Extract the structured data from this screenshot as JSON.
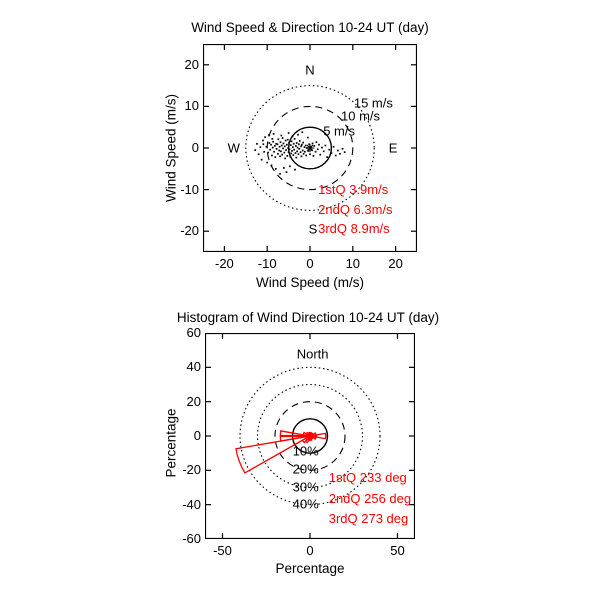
{
  "colors": {
    "axis": "#000000",
    "annotation_red": "#ff0000",
    "scatter": "#000000",
    "background": "#ffffff"
  },
  "chart_data": [
    {
      "id": "wind-scatter",
      "type": "scatter",
      "title": "Wind Speed & Direction 10-24 UT (day)",
      "xlabel": "Wind Speed (m/s)",
      "ylabel": "Wind Speed (m/s)",
      "xlim": [
        -25,
        25
      ],
      "ylim": [
        -25,
        25
      ],
      "xticks": [
        -20,
        -10,
        0,
        10,
        20
      ],
      "yticks": [
        -20,
        -10,
        0,
        10,
        20
      ],
      "grid_circles": [
        {
          "r": 5,
          "style": "solid",
          "label": "5 m/s",
          "label_pos": [
            6.8,
            4.2
          ]
        },
        {
          "r": 10,
          "style": "dashed",
          "label": "10 m/s",
          "label_pos": [
            11.8,
            7.8
          ]
        },
        {
          "r": 15,
          "style": "dotted",
          "label": "15 m/s",
          "label_pos": [
            14.8,
            10.9
          ]
        }
      ],
      "compass_labels": [
        {
          "text": "N",
          "pos": [
            0,
            18.7
          ]
        },
        {
          "text": "E",
          "pos": [
            19.4,
            0
          ]
        },
        {
          "text": "S",
          "pos": [
            0.7,
            -19.4
          ]
        },
        {
          "text": "W",
          "pos": [
            -17.8,
            0
          ]
        }
      ],
      "annotations": [
        {
          "text": "1stQ 3.9m/s",
          "pos": [
            1.9,
            -10.1
          ]
        },
        {
          "text": "2ndQ 6.3m/s",
          "pos": [
            1.9,
            -14.8
          ]
        },
        {
          "text": "3rdQ 8.9m/s",
          "pos": [
            1.9,
            -19.4
          ]
        }
      ],
      "center_marker": {
        "shape": "asterisk",
        "pos": [
          0,
          0
        ]
      },
      "points": [
        [
          -10.2,
          0.3
        ],
        [
          -9.8,
          -1.1
        ],
        [
          -9.5,
          1.2
        ],
        [
          -9.3,
          -0.4
        ],
        [
          -9.1,
          0.8
        ],
        [
          -8.9,
          -1.8
        ],
        [
          -8.7,
          0.1
        ],
        [
          -8.6,
          1.5
        ],
        [
          -8.4,
          -0.9
        ],
        [
          -8.2,
          0.5
        ],
        [
          -8.1,
          -2.2
        ],
        [
          -7.9,
          1.0
        ],
        [
          -7.8,
          -0.2
        ],
        [
          -7.6,
          0.9
        ],
        [
          -7.5,
          -1.4
        ],
        [
          -7.4,
          2.1
        ],
        [
          -7.2,
          -0.6
        ],
        [
          -7.1,
          0.3
        ],
        [
          -7.0,
          -2.0
        ],
        [
          -6.9,
          1.4
        ],
        [
          -6.8,
          -0.8
        ],
        [
          -6.6,
          0.6
        ],
        [
          -6.5,
          -1.6
        ],
        [
          -6.4,
          2.4
        ],
        [
          -6.3,
          -0.1
        ],
        [
          -6.2,
          1.1
        ],
        [
          -6.0,
          -1.1
        ],
        [
          -5.9,
          0.4
        ],
        [
          -5.8,
          -2.5
        ],
        [
          -5.7,
          1.8
        ],
        [
          -5.6,
          -0.5
        ],
        [
          -5.4,
          0.8
        ],
        [
          -5.3,
          -1.9
        ],
        [
          -5.2,
          2.0
        ],
        [
          -5.1,
          0.0
        ],
        [
          -5.0,
          -1.0
        ],
        [
          -4.9,
          1.3
        ],
        [
          -4.8,
          -0.3
        ],
        [
          -4.6,
          -2.1
        ],
        [
          -4.5,
          0.7
        ],
        [
          -4.4,
          -1.3
        ],
        [
          -4.3,
          1.6
        ],
        [
          -4.2,
          -0.7
        ],
        [
          -4.0,
          0.2
        ],
        [
          -3.9,
          -1.7
        ],
        [
          -3.8,
          1.0
        ],
        [
          -3.7,
          -0.4
        ],
        [
          -3.6,
          2.2
        ],
        [
          -3.4,
          -1.2
        ],
        [
          -3.3,
          0.5
        ],
        [
          -3.2,
          -2.3
        ],
        [
          -3.1,
          1.2
        ],
        [
          -3.0,
          -0.8
        ],
        [
          -2.9,
          0.1
        ],
        [
          -2.7,
          -1.5
        ],
        [
          -2.6,
          0.9
        ],
        [
          -2.5,
          -0.2
        ],
        [
          -2.4,
          1.7
        ],
        [
          -2.2,
          -1.0
        ],
        [
          -2.1,
          0.4
        ],
        [
          -2.0,
          -2.0
        ],
        [
          -1.9,
          0.8
        ],
        [
          -1.7,
          -0.6
        ],
        [
          -1.6,
          1.3
        ],
        [
          -1.5,
          -1.4
        ],
        [
          -1.3,
          0.2
        ],
        [
          -1.2,
          -0.9
        ],
        [
          -1.0,
          0.6
        ],
        [
          -0.9,
          -1.8
        ],
        [
          -0.7,
          0.0
        ],
        [
          -12.8,
          -0.5
        ],
        [
          -12.4,
          1.0
        ],
        [
          -12.0,
          -1.5
        ],
        [
          -11.6,
          0.2
        ],
        [
          -11.3,
          -2.8
        ],
        [
          -11.0,
          1.8
        ],
        [
          -10.7,
          -0.9
        ],
        [
          -10.5,
          2.6
        ],
        [
          -10.0,
          -3.5
        ],
        [
          -9.6,
          3.1
        ],
        [
          -9.0,
          -4.2
        ],
        [
          -8.5,
          3.4
        ],
        [
          -8.0,
          -5.0
        ],
        [
          -7.0,
          -6.2
        ],
        [
          -6.1,
          -4.8
        ],
        [
          -5.5,
          -5.8
        ],
        [
          -4.7,
          -4.4
        ],
        [
          -3.5,
          -5.2
        ],
        [
          -6.7,
          3.0
        ],
        [
          -5.0,
          3.6
        ],
        [
          -4.1,
          2.8
        ],
        [
          -2.8,
          3.2
        ],
        [
          -8.8,
          2.2
        ],
        [
          -10.9,
          0.9
        ],
        [
          -0.5,
          2.5
        ],
        [
          -1.8,
          3.8
        ],
        [
          -0.4,
          -0.7
        ],
        [
          -0.2,
          0.9
        ],
        [
          0.0,
          -1.5
        ],
        [
          0.2,
          0.3
        ],
        [
          0.4,
          -0.5
        ],
        [
          0.6,
          1.1
        ],
        [
          0.8,
          -1.9
        ],
        [
          1.0,
          0.5
        ],
        [
          1.3,
          -0.9
        ],
        [
          1.5,
          1.4
        ],
        [
          1.8,
          -0.3
        ],
        [
          2.1,
          0.8
        ],
        [
          2.4,
          -1.6
        ],
        [
          2.8,
          0.1
        ],
        [
          3.2,
          -0.8
        ],
        [
          3.6,
          0.6
        ],
        [
          4.0,
          -2.2
        ],
        [
          4.5,
          -0.4
        ],
        [
          5.0,
          -1.2
        ],
        [
          5.5,
          0.3
        ],
        [
          6.0,
          -1.8
        ],
        [
          6.5,
          -0.6
        ],
        [
          7.0,
          -1.4
        ],
        [
          7.6,
          -0.2
        ],
        [
          8.1,
          -1.0
        ]
      ]
    },
    {
      "id": "wind-rose",
      "type": "rose",
      "title": "Histogram of Wind Direction 10-24 UT (day)",
      "xlabel": "Percentage",
      "ylabel": "Percentage",
      "xlim": [
        -60,
        60
      ],
      "ylim": [
        -60,
        60
      ],
      "xticks": [
        -50,
        0,
        50
      ],
      "yticks": [
        -60,
        -40,
        -20,
        0,
        20,
        40,
        60
      ],
      "grid_circles": [
        {
          "r": 10,
          "style": "solid",
          "label": "10%",
          "label_pos": [
            -2.5,
            -8.5
          ]
        },
        {
          "r": 20,
          "style": "dashed",
          "label": "20%",
          "label_pos": [
            -2.5,
            -19.0
          ]
        },
        {
          "r": 30,
          "style": "dotted",
          "label": "30%",
          "label_pos": [
            -2.5,
            -29.5
          ]
        },
        {
          "r": 40,
          "style": "dotted",
          "label": "40%",
          "label_pos": [
            -2.5,
            -39.5
          ]
        }
      ],
      "compass_labels": [
        {
          "text": "North",
          "pos": [
            1.5,
            48
          ]
        }
      ],
      "annotations": [
        {
          "text": "1stQ 233 deg",
          "pos": [
            10.7,
            -24.7
          ]
        },
        {
          "text": "2ndQ 256 deg",
          "pos": [
            10.7,
            -36.5
          ]
        },
        {
          "text": "3rdQ 273 deg",
          "pos": [
            10.7,
            -48.3
          ]
        }
      ],
      "petals_deg_pct": [
        [
          10,
          2
        ],
        [
          30,
          1.5
        ],
        [
          50,
          2
        ],
        [
          70,
          3.5
        ],
        [
          90,
          9
        ],
        [
          110,
          3.5
        ],
        [
          130,
          2
        ],
        [
          150,
          1.5
        ],
        [
          170,
          2.5
        ],
        [
          190,
          2.5
        ],
        [
          210,
          4
        ],
        [
          230,
          5
        ],
        [
          250,
          43
        ],
        [
          270,
          17
        ],
        [
          290,
          4
        ],
        [
          310,
          2.5
        ],
        [
          330,
          1.5
        ],
        [
          350,
          2
        ]
      ],
      "bin_width_deg": 20,
      "mean_arrow": {
        "from": [
          -17,
          0
        ],
        "to": [
          4.5,
          0
        ]
      }
    }
  ]
}
